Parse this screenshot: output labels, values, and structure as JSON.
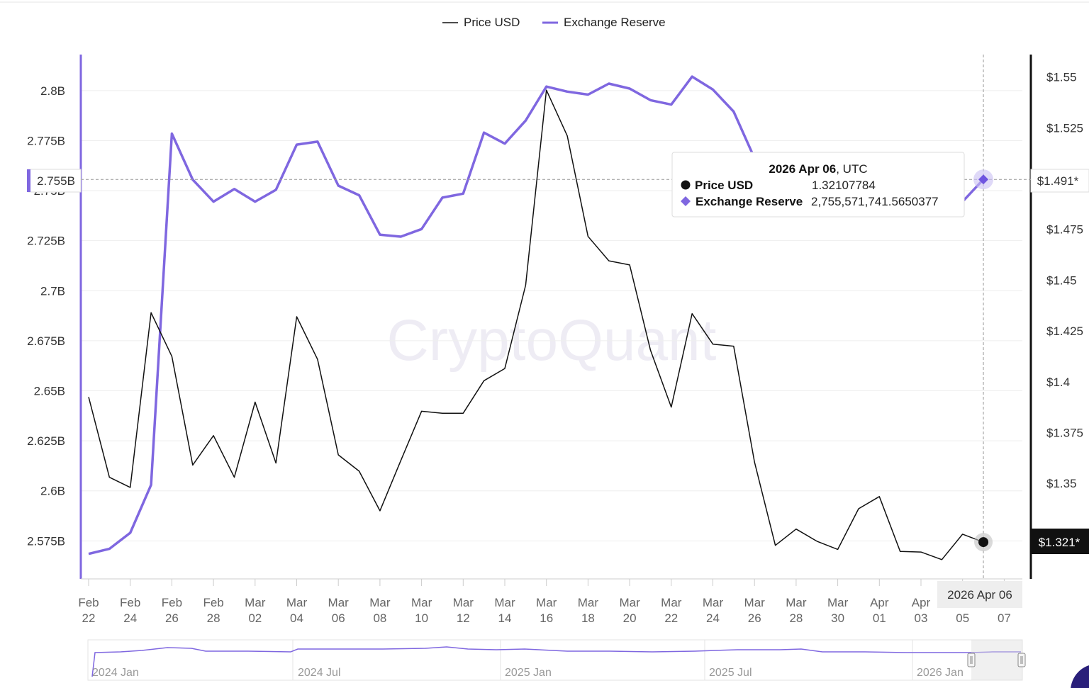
{
  "legend": {
    "price_label": "Price USD",
    "reserve_label": "Exchange Reserve"
  },
  "watermark": "CryptoQuant",
  "colors": {
    "price": "#111111",
    "reserve": "#7f67e0",
    "grid": "#eeeeee"
  },
  "crosshair": {
    "date_label": "2026 Apr 06",
    "left_value_label": "2.755B",
    "right_reserve_label": "$1.491*",
    "right_price_label": "$1.321*"
  },
  "tooltip": {
    "title_date": "2026 Apr 06",
    "title_suffix": ", UTC",
    "price_name": "Price USD",
    "price_value": "1.32107784",
    "reserve_name": "Exchange Reserve",
    "reserve_value": "2,755,571,741.5650377"
  },
  "navigator": {
    "labels": [
      "2024 Jan",
      "2024 Jul",
      "2025 Jan",
      "2025 Jul",
      "2026 Jan"
    ]
  },
  "chart_data": {
    "type": "line",
    "x": [
      "Feb 22",
      "Feb 23",
      "Feb 24",
      "Feb 25",
      "Feb 26",
      "Feb 27",
      "Feb 28",
      "Mar 01",
      "Mar 02",
      "Mar 03",
      "Mar 04",
      "Mar 05",
      "Mar 06",
      "Mar 07",
      "Mar 08",
      "Mar 09",
      "Mar 10",
      "Mar 11",
      "Mar 12",
      "Mar 13",
      "Mar 14",
      "Mar 15",
      "Mar 16",
      "Mar 17",
      "Mar 18",
      "Mar 19",
      "Mar 20",
      "Mar 21",
      "Mar 22",
      "Mar 23",
      "Mar 24",
      "Mar 25",
      "Mar 26",
      "Mar 27",
      "Mar 28",
      "Mar 29",
      "Mar 30",
      "Mar 31",
      "Apr 01",
      "Apr 02",
      "Apr 03",
      "Apr 04",
      "Apr 05",
      "Apr 06"
    ],
    "x_tick_labels": [
      [
        "Feb",
        "22"
      ],
      [
        "Feb",
        "24"
      ],
      [
        "Feb",
        "26"
      ],
      [
        "Feb",
        "28"
      ],
      [
        "Mar",
        "02"
      ],
      [
        "Mar",
        "04"
      ],
      [
        "Mar",
        "06"
      ],
      [
        "Mar",
        "08"
      ],
      [
        "Mar",
        "10"
      ],
      [
        "Mar",
        "12"
      ],
      [
        "Mar",
        "14"
      ],
      [
        "Mar",
        "16"
      ],
      [
        "Mar",
        "18"
      ],
      [
        "Mar",
        "20"
      ],
      [
        "Mar",
        "22"
      ],
      [
        "Mar",
        "24"
      ],
      [
        "Mar",
        "26"
      ],
      [
        "Mar",
        "28"
      ],
      [
        "Mar",
        "30"
      ],
      [
        "Apr",
        "01"
      ],
      [
        "Apr",
        "03"
      ],
      [
        "",
        "05"
      ],
      [
        "",
        "07"
      ]
    ],
    "y_left": {
      "ticks": [
        "2.8B",
        "2.775B",
        "2.75B",
        "2.725B",
        "2.7B",
        "2.675B",
        "2.65B",
        "2.625B",
        "2.6B",
        "2.575B"
      ],
      "tick_values": [
        2.8,
        2.775,
        2.75,
        2.725,
        2.7,
        2.675,
        2.65,
        2.625,
        2.6,
        2.575
      ],
      "range": [
        2.556,
        2.818
      ]
    },
    "y_right": {
      "ticks": [
        "$1.55",
        "$1.525",
        "$1.5",
        "$1.475",
        "$1.45",
        "$1.425",
        "$1.4",
        "$1.375",
        "$1.35"
      ],
      "tick_values": [
        1.55,
        1.525,
        1.5,
        1.475,
        1.45,
        1.425,
        1.4,
        1.375,
        1.35
      ],
      "range": [
        1.303,
        1.561
      ]
    },
    "grid": true,
    "legend_position": "top-center",
    "series": [
      {
        "name": "Exchange Reserve",
        "axis": "left",
        "color": "#7f67e0",
        "values": [
          2.5685,
          2.571,
          2.579,
          2.603,
          2.7785,
          2.7555,
          2.7445,
          2.7508,
          2.7445,
          2.7504,
          2.773,
          2.7745,
          2.7525,
          2.7477,
          2.728,
          2.727,
          2.7308,
          2.7465,
          2.7485,
          2.779,
          2.7735,
          2.785,
          2.802,
          2.7995,
          2.798,
          2.8035,
          2.801,
          2.7952,
          2.793,
          2.807,
          2.8005,
          2.7895,
          2.7662,
          null,
          null,
          null,
          null,
          null,
          null,
          null,
          null,
          null,
          2.7445,
          2.7556
        ]
      },
      {
        "name": "Price USD",
        "axis": "right",
        "color": "#111111",
        "values": [
          1.3925,
          1.353,
          1.348,
          1.434,
          1.4125,
          1.359,
          1.3735,
          1.353,
          1.39,
          1.36,
          1.432,
          1.411,
          1.364,
          1.356,
          1.3365,
          1.3612,
          1.3855,
          1.3845,
          1.3845,
          1.4005,
          1.4065,
          1.4475,
          1.5435,
          1.521,
          1.4715,
          1.4595,
          1.4575,
          1.4155,
          1.3875,
          1.4335,
          1.4185,
          1.4175,
          1.3605,
          1.3195,
          1.3275,
          1.3215,
          1.3175,
          1.3375,
          1.3435,
          1.3165,
          1.3162,
          1.3125,
          1.325,
          1.3211
        ]
      }
    ]
  }
}
